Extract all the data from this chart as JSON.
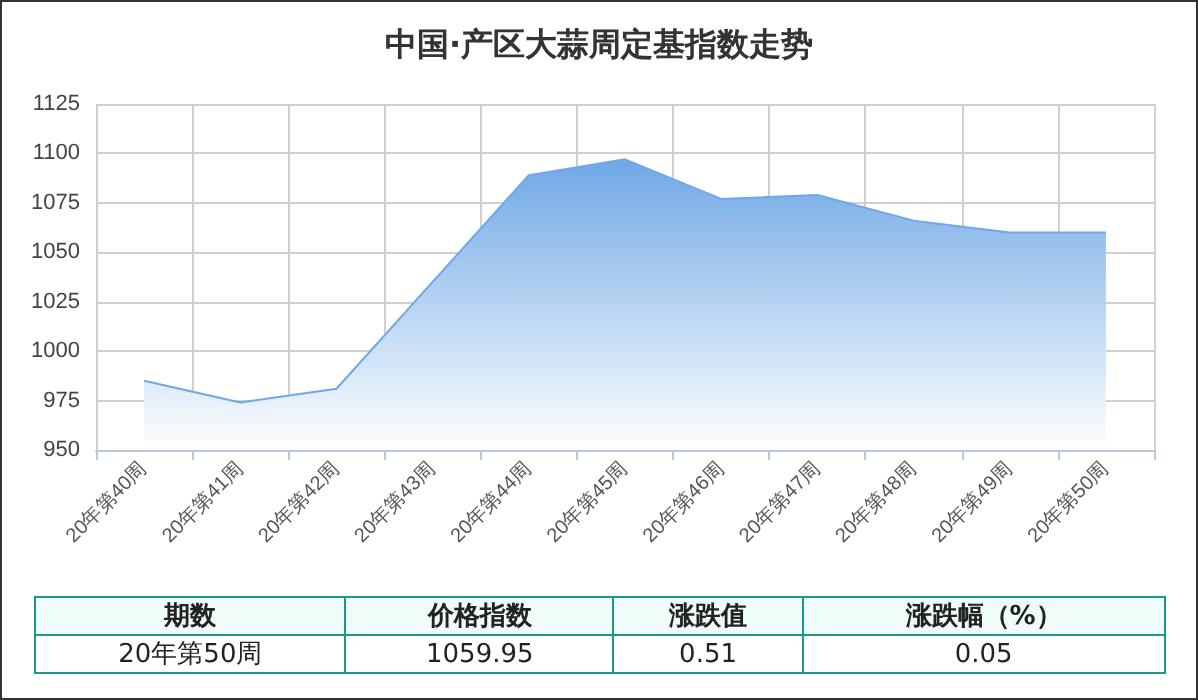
{
  "chart_data": {
    "type": "area",
    "title": "中国·产区大蒜周定基指数走势",
    "categories": [
      "20年第40周",
      "20年第41周",
      "20年第42周",
      "20年第43周",
      "20年第44周",
      "20年第45周",
      "20年第46周",
      "20年第47周",
      "20年第48周",
      "20年第49周",
      "20年第50周"
    ],
    "series": [
      {
        "color": "#6fa8e6",
        "values": [
          985,
          974,
          981,
          1035,
          1089,
          1097,
          1077,
          1079,
          1066,
          1060,
          1060
        ]
      }
    ],
    "ylim": [
      950,
      1125
    ],
    "yticks": [
      950,
      975,
      1000,
      1025,
      1050,
      1075,
      1100,
      1125
    ],
    "grid": true,
    "marker": "none",
    "line_style": "solid",
    "annotations": [
      "期数",
      "价格指数",
      "涨跌值",
      "涨跌幅（%）",
      "20年第50周",
      "1059.95",
      "0.51",
      "0.05"
    ]
  }
}
